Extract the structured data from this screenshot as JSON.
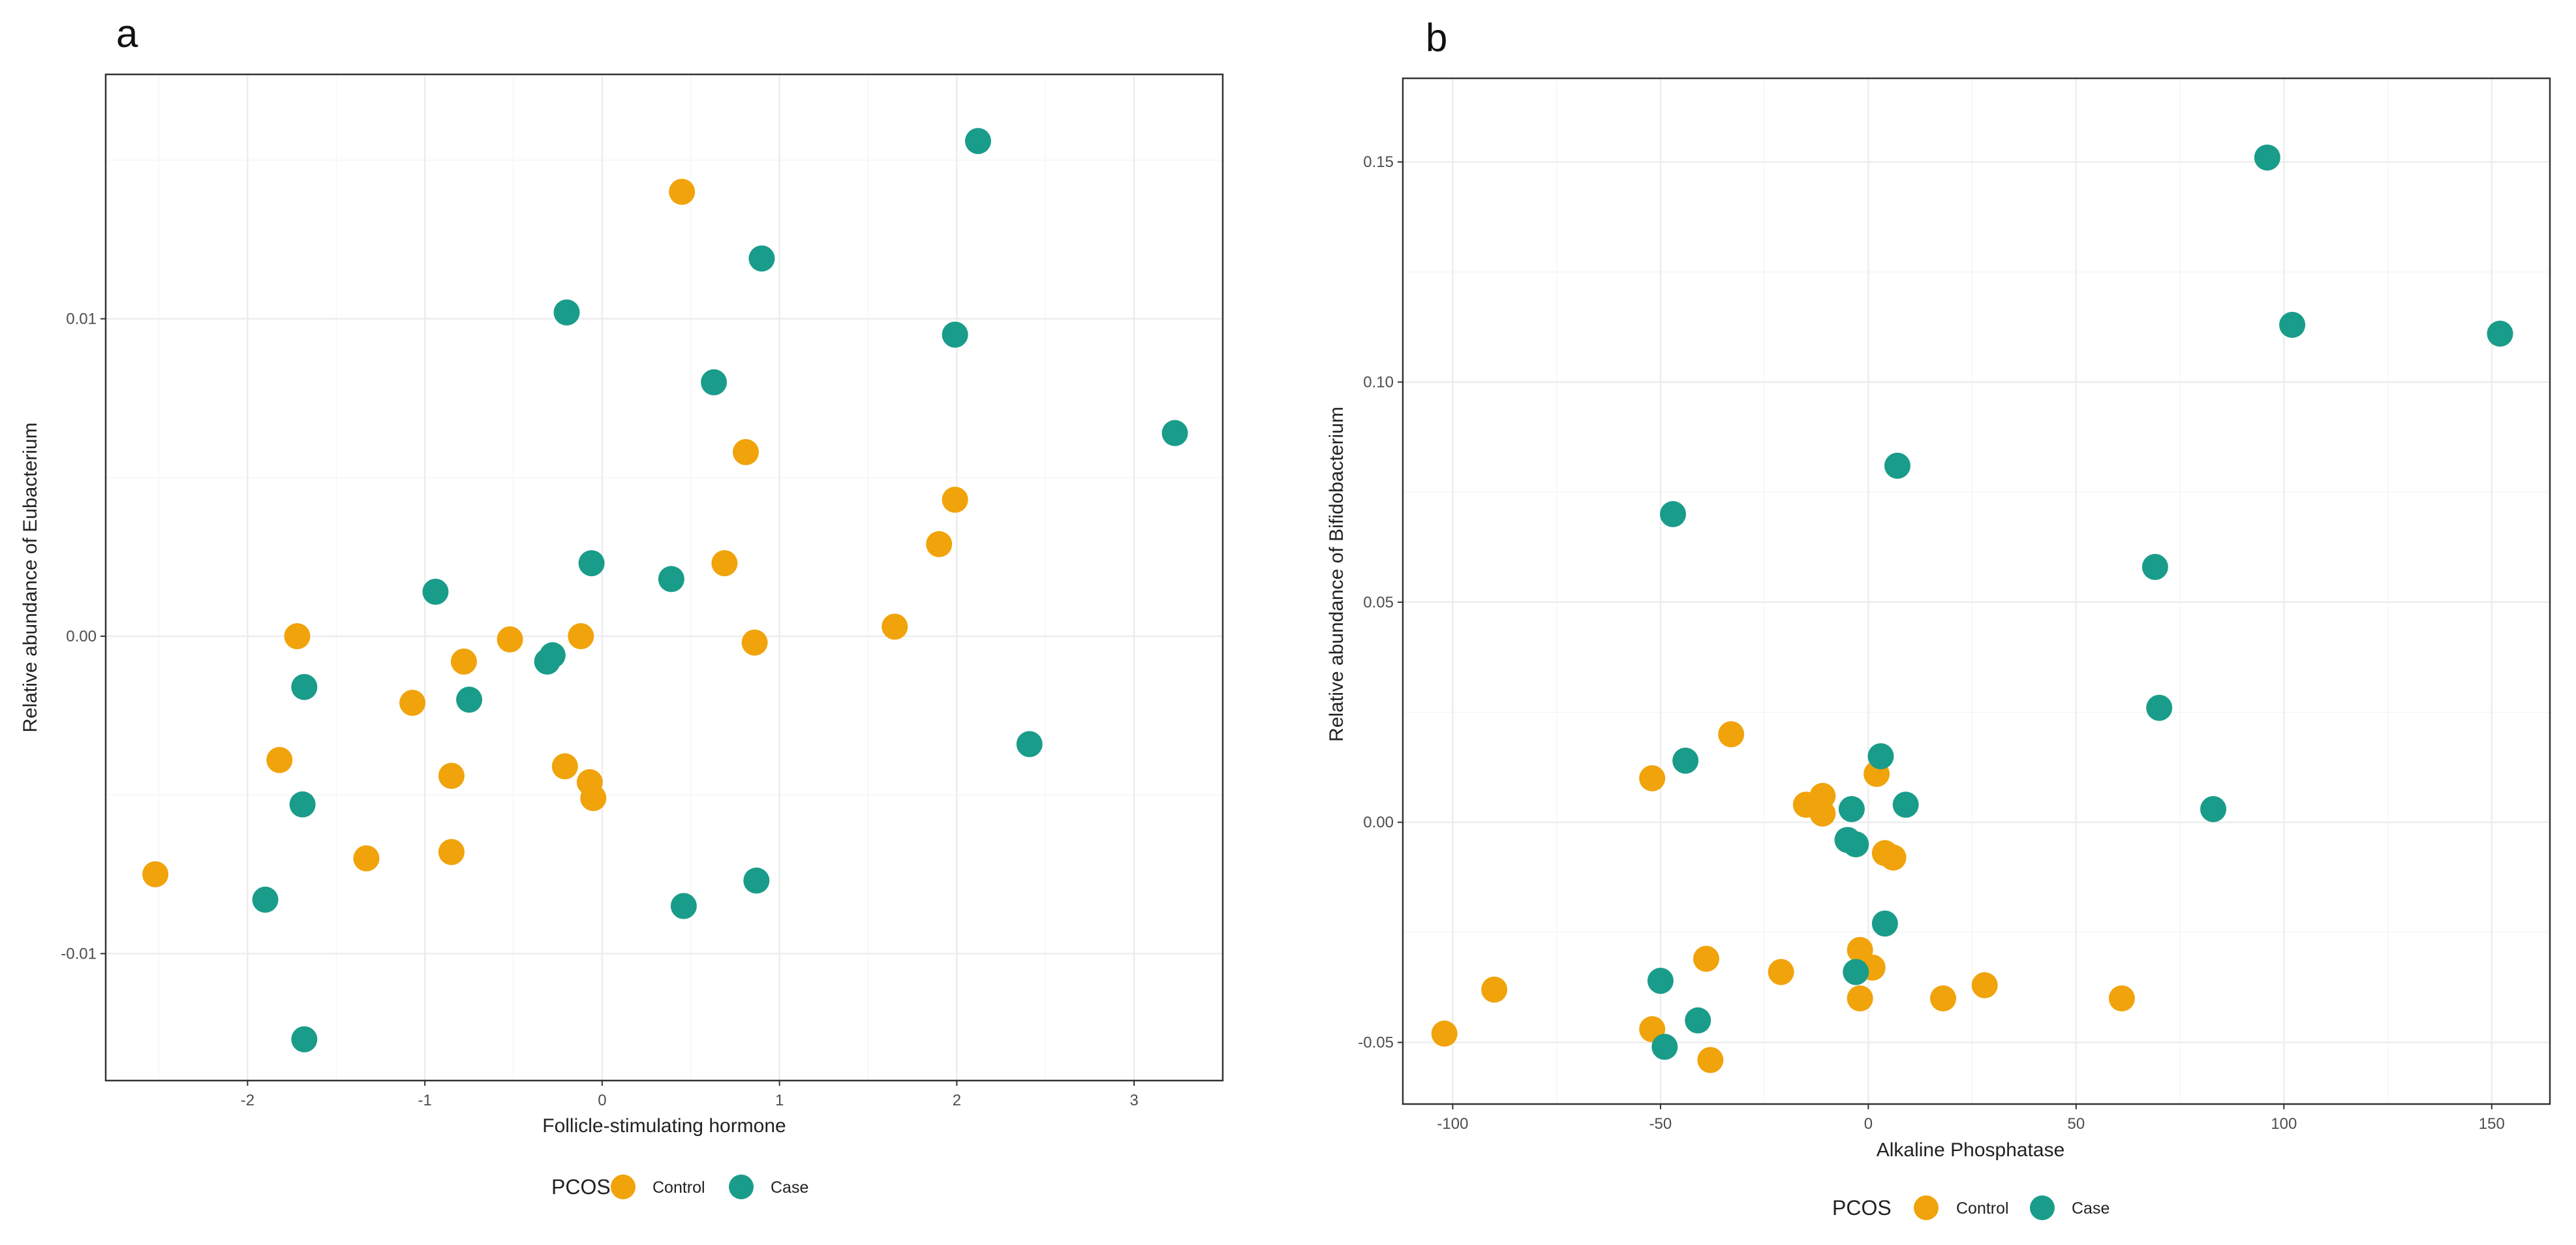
{
  "colors": {
    "control": "#f0a30a",
    "case": "#1a9c8a"
  },
  "chart_data": [
    {
      "type": "scatter",
      "panel": "a",
      "xlabel": "Follicle-stimulating hormone",
      "ylabel": "Relative abundance of Eubacterium",
      "xlim": [
        -2.8,
        3.5
      ],
      "ylim": [
        -0.014,
        0.0177
      ],
      "xticks": [
        -2,
        -1,
        0,
        1,
        2,
        3
      ],
      "xtick_labels": [
        "-2",
        "-1",
        "0",
        "1",
        "2",
        "3"
      ],
      "yticks": [
        -0.01,
        0.0,
        0.01
      ],
      "ytick_labels": [
        "-0.01",
        "0.00",
        "0.01"
      ],
      "legend_position": "bottom",
      "legend": {
        "title": "PCOS",
        "entries": [
          "Control",
          "Case"
        ]
      },
      "series": [
        {
          "name": "Control",
          "points": [
            [
              -2.52,
              -0.0075
            ],
            [
              -1.72,
              0.0
            ],
            [
              -1.82,
              -0.0039
            ],
            [
              -1.33,
              -0.007
            ],
            [
              -1.07,
              -0.0021
            ],
            [
              -0.85,
              -0.0044
            ],
            [
              -0.78,
              -0.0008
            ],
            [
              -0.85,
              -0.0068
            ],
            [
              -0.52,
              -0.0001
            ],
            [
              -0.21,
              -0.0041
            ],
            [
              -0.12,
              0.0
            ],
            [
              -0.07,
              -0.0046
            ],
            [
              -0.05,
              -0.0051
            ],
            [
              0.45,
              0.014
            ],
            [
              0.69,
              0.0023
            ],
            [
              0.81,
              0.0058
            ],
            [
              0.86,
              -0.0002
            ],
            [
              1.65,
              0.0003
            ],
            [
              1.9,
              0.0029
            ],
            [
              1.99,
              0.0043
            ]
          ]
        },
        {
          "name": "Case",
          "points": [
            [
              -1.9,
              -0.0083
            ],
            [
              -1.68,
              -0.0016
            ],
            [
              -1.69,
              -0.0053
            ],
            [
              -1.68,
              -0.0127
            ],
            [
              -0.94,
              0.0014
            ],
            [
              -0.75,
              -0.002
            ],
            [
              -0.31,
              -0.0008
            ],
            [
              -0.28,
              -0.0006
            ],
            [
              -0.2,
              0.0102
            ],
            [
              -0.06,
              0.0023
            ],
            [
              0.39,
              0.0018
            ],
            [
              0.46,
              -0.0085
            ],
            [
              0.63,
              0.008
            ],
            [
              0.87,
              -0.0077
            ],
            [
              0.9,
              0.0119
            ],
            [
              1.99,
              0.0095
            ],
            [
              2.12,
              0.0156
            ],
            [
              2.41,
              -0.0034
            ],
            [
              3.23,
              0.0064
            ]
          ]
        }
      ]
    },
    {
      "type": "scatter",
      "panel": "b",
      "xlabel": "Alkaline Phosphatase",
      "ylabel": "Relative abundance of Bifidobacterium",
      "xlim": [
        -112,
        164
      ],
      "ylim": [
        -0.064,
        0.169
      ],
      "xticks": [
        -100,
        -50,
        0,
        50,
        100,
        150
      ],
      "xtick_labels": [
        "-100",
        "-50",
        "0",
        "50",
        "100",
        "150"
      ],
      "yticks": [
        -0.05,
        0.0,
        0.05,
        0.1,
        0.15
      ],
      "ytick_labels": [
        "-0.05",
        "0.00",
        "0.05",
        "0.10",
        "0.15"
      ],
      "legend_position": "bottom",
      "legend": {
        "title": "PCOS",
        "entries": [
          "Control",
          "Case"
        ]
      },
      "series": [
        {
          "name": "Control",
          "points": [
            [
              -102,
              -0.048
            ],
            [
              -90,
              -0.038
            ],
            [
              -52,
              0.01
            ],
            [
              -52,
              -0.047
            ],
            [
              -39,
              -0.031
            ],
            [
              -38,
              -0.054
            ],
            [
              -33,
              0.02
            ],
            [
              -21,
              -0.034
            ],
            [
              -15,
              0.004
            ],
            [
              -11,
              0.006
            ],
            [
              -11,
              0.002
            ],
            [
              -2,
              -0.029
            ],
            [
              -2,
              -0.04
            ],
            [
              1,
              -0.033
            ],
            [
              2,
              0.011
            ],
            [
              4,
              -0.007
            ],
            [
              6,
              -0.008
            ],
            [
              18,
              -0.04
            ],
            [
              28,
              -0.037
            ],
            [
              61,
              -0.04
            ]
          ]
        },
        {
          "name": "Case",
          "points": [
            [
              -50,
              -0.036
            ],
            [
              -49,
              -0.051
            ],
            [
              -47,
              0.07
            ],
            [
              -44,
              0.014
            ],
            [
              -41,
              -0.045
            ],
            [
              -5,
              -0.004
            ],
            [
              -4,
              0.003
            ],
            [
              -3,
              -0.005
            ],
            [
              -3,
              -0.034
            ],
            [
              3,
              0.015
            ],
            [
              4,
              -0.023
            ],
            [
              7,
              0.081
            ],
            [
              9,
              0.004
            ],
            [
              69,
              0.058
            ],
            [
              70,
              0.026
            ],
            [
              83,
              0.003
            ],
            [
              96,
              0.151
            ],
            [
              102,
              0.113
            ],
            [
              152,
              0.111
            ]
          ]
        }
      ]
    }
  ]
}
